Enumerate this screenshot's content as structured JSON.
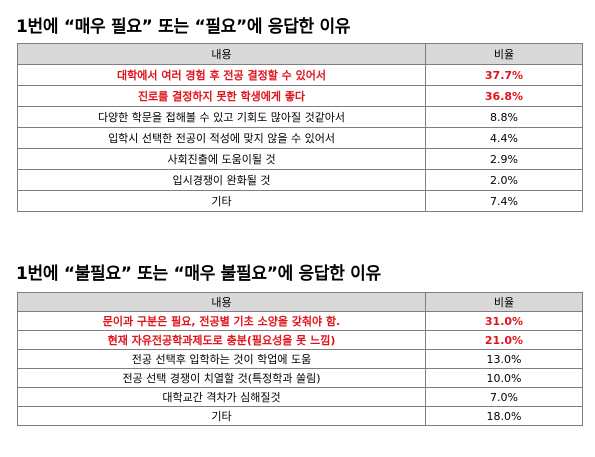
{
  "section1": {
    "title": "1번에 “매우 필요” 또는 “필요”에 응답한 이유",
    "header": {
      "content": "내용",
      "ratio": "비율"
    },
    "rows": [
      {
        "content": "대학에서 여러 경험 후 전공 결정할 수 있어서",
        "ratio": "37.7%",
        "highlight": true
      },
      {
        "content": "진로를 결정하지 못한 학생에게 좋다",
        "ratio": "36.8%",
        "highlight": true
      },
      {
        "content": "다양한 학문을 접해볼 수 있고 기회도 많아질 것같아서",
        "ratio": "8.8%",
        "highlight": false
      },
      {
        "content": "입학시 선택한 전공이 적성에 맞지 않을 수 있어서",
        "ratio": "4.4%",
        "highlight": false
      },
      {
        "content": "사회진출에 도움이될 것",
        "ratio": "2.9%",
        "highlight": false
      },
      {
        "content": "입시경쟁이 완화될 것",
        "ratio": "2.0%",
        "highlight": false
      },
      {
        "content": "기타",
        "ratio": "7.4%",
        "highlight": false
      }
    ]
  },
  "section2": {
    "title": "1번에 “불필요” 또는 “매우 불필요”에 응답한 이유",
    "header": {
      "content": "내용",
      "ratio": "비율"
    },
    "rows": [
      {
        "content": "문이과 구분은 필요, 전공별 기초 소양을 갖춰야 함.",
        "ratio": "31.0%",
        "highlight": true
      },
      {
        "content": "현재 자유전공학과제도로 충분(필요성을 못 느낌)",
        "ratio": "21.0%",
        "highlight": true
      },
      {
        "content": "전공 선택후 입학하는 것이 학업에 도움",
        "ratio": "13.0%",
        "highlight": false
      },
      {
        "content": "전공 선택 경쟁이 치열할 것(특정학과 쏠림)",
        "ratio": "10.0%",
        "highlight": false
      },
      {
        "content": "대학교간 격차가 심해질것",
        "ratio": "7.0%",
        "highlight": false
      },
      {
        "content": "기타",
        "ratio": "18.0%",
        "highlight": false
      }
    ]
  },
  "colors": {
    "highlight_text": "#e0141d",
    "header_fill": "#d9d9d9",
    "border": "#7f7f7f"
  }
}
